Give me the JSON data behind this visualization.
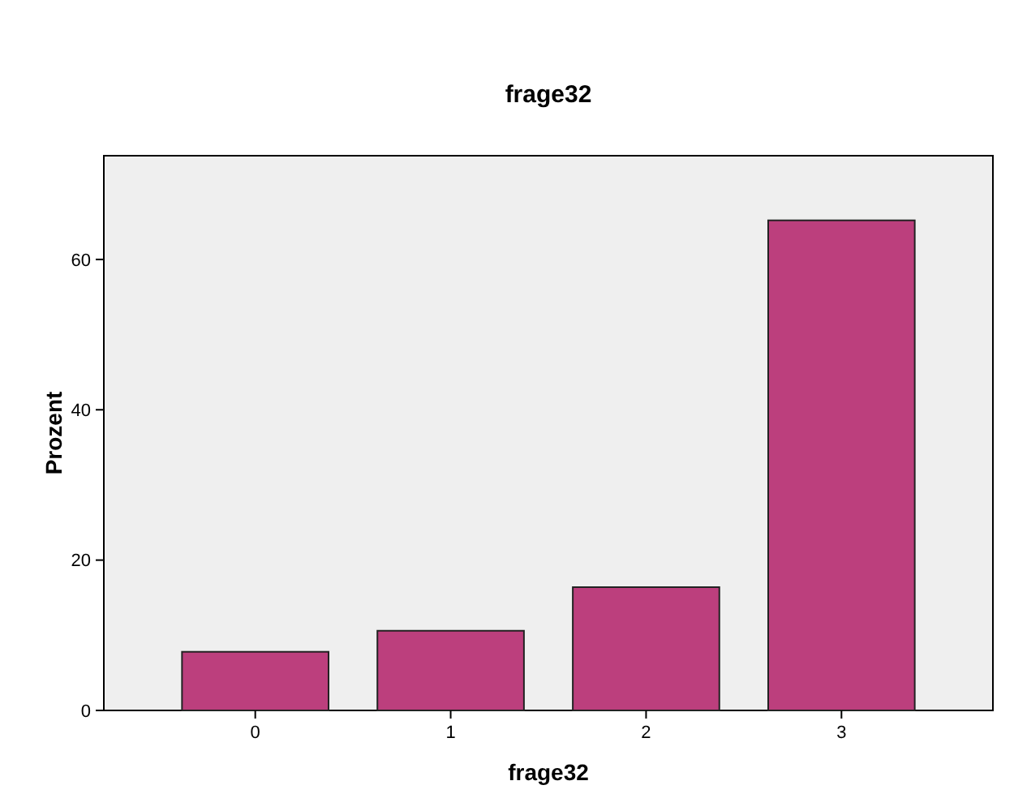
{
  "chart_data": {
    "type": "bar",
    "title": "frage32",
    "xlabel": "frage32",
    "ylabel": "Prozent",
    "categories": [
      "0",
      "1",
      "2",
      "3"
    ],
    "values": [
      7.8,
      10.6,
      16.4,
      65.2
    ],
    "color": "#bc3f7d",
    "ylim": [
      0,
      73.8
    ],
    "yticks": [
      0,
      20,
      40,
      60
    ],
    "grid": false
  }
}
